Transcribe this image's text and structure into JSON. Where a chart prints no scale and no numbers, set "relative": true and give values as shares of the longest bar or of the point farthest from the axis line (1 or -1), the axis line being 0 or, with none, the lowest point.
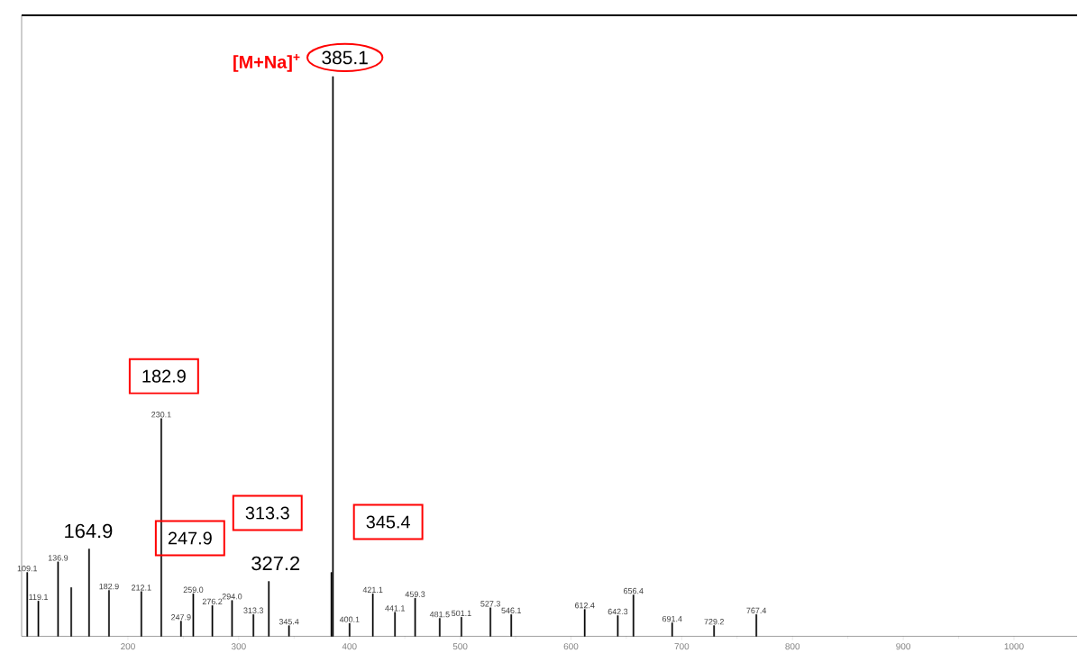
{
  "chart_data": {
    "type": "bar",
    "relative": true,
    "color": "#000000",
    "x": [
      109.1,
      119.1,
      136.9,
      148.8,
      164.9,
      182.9,
      212.1,
      230.1,
      247.9,
      259.0,
      276.2,
      294.0,
      313.3,
      327.2,
      345.4,
      383.7,
      385.1,
      400.1,
      421.1,
      441.1,
      459.3,
      481.5,
      501.1,
      527.3,
      546.1,
      612.4,
      642.3,
      656.4,
      691.4,
      729.2,
      767.4
    ],
    "values": [
      0.114,
      0.063,
      0.133,
      0.087,
      0.156,
      0.082,
      0.08,
      0.389,
      0.027,
      0.076,
      0.055,
      0.064,
      0.039,
      0.098,
      0.019,
      0.114,
      1,
      0.023,
      0.076,
      0.043,
      0.068,
      0.032,
      0.034,
      0.051,
      0.039,
      0.048,
      0.037,
      0.074,
      0.024,
      0.019,
      0.039
    ],
    "xlim": [
      104,
      1057
    ],
    "xticks": [
      200,
      300,
      400,
      500,
      600,
      700,
      800,
      900,
      1000
    ],
    "tick_labels": "x",
    "annotations": [
      {
        "text": "109.1",
        "x": 109.1,
        "y": 0.114
      },
      {
        "text": "119.1",
        "x": 119.1,
        "y": 0.063
      },
      {
        "text": "136.9",
        "x": 136.9,
        "y": 0.133
      },
      {
        "text": "182.9",
        "x": 182.9,
        "y": 0.082
      },
      {
        "text": "212.1",
        "x": 212.1,
        "y": 0.08
      },
      {
        "text": "230.1",
        "x": 230.1,
        "y": 0.389
      },
      {
        "text": "247.9",
        "x": 247.9,
        "y": 0.027
      },
      {
        "text": "259.0",
        "x": 259.0,
        "y": 0.076
      },
      {
        "text": "276.2",
        "x": 276.2,
        "y": 0.055
      },
      {
        "text": "294.0",
        "x": 294.0,
        "y": 0.064
      },
      {
        "text": "313.3",
        "x": 313.3,
        "y": 0.039
      },
      {
        "text": "345.4",
        "x": 345.4,
        "y": 0.019
      },
      {
        "text": "400.1",
        "x": 400.1,
        "y": 0.023
      },
      {
        "text": "421.1",
        "x": 421.1,
        "y": 0.076
      },
      {
        "text": "441.1",
        "x": 441.1,
        "y": 0.043
      },
      {
        "text": "459.3",
        "x": 459.3,
        "y": 0.068
      },
      {
        "text": "481.5",
        "x": 481.5,
        "y": 0.032
      },
      {
        "text": "501.1",
        "x": 501.1,
        "y": 0.034
      },
      {
        "text": "527.3",
        "x": 527.3,
        "y": 0.051
      },
      {
        "text": "546.1",
        "x": 546.1,
        "y": 0.039
      },
      {
        "text": "612.4",
        "x": 612.4,
        "y": 0.048
      },
      {
        "text": "642.3",
        "x": 642.3,
        "y": 0.037
      },
      {
        "text": "656.4",
        "x": 656.4,
        "y": 0.074
      },
      {
        "text": "691.4",
        "x": 691.4,
        "y": 0.024
      },
      {
        "text": "729.2",
        "x": 729.2,
        "y": 0.019
      },
      {
        "text": "767.4",
        "x": 767.4,
        "y": 0.039
      },
      "[M+Na]$^{+}$",
      "385.1",
      "182.9",
      "247.9",
      "313.3",
      "345.4",
      "164.9",
      "327.2"
    ]
  }
}
